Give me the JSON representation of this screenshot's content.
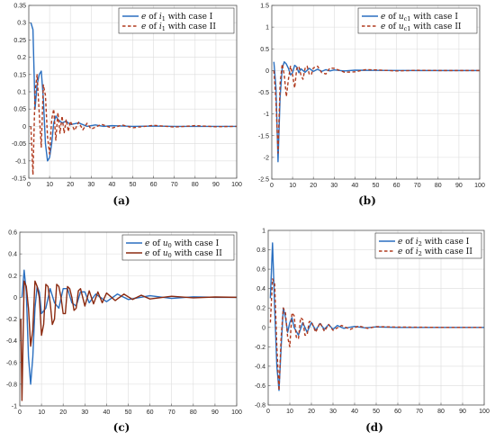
{
  "colors": {
    "case1": "#2a6fc0",
    "case2_dashed": "#b03a1e",
    "case2_solid_c": "#8b2a10",
    "grid": "#dcdcdc",
    "axis": "#555555"
  },
  "chart_data": [
    {
      "type": "line",
      "panel_label": "(a)",
      "xlim": [
        0,
        100
      ],
      "ylim": [
        -0.15,
        0.35
      ],
      "xticks": [
        0,
        10,
        20,
        30,
        40,
        50,
        60,
        70,
        80,
        90,
        100
      ],
      "yticks": [
        -0.15,
        -0.1,
        -0.05,
        0,
        0.05,
        0.1,
        0.15,
        0.2,
        0.25,
        0.3,
        0.35
      ],
      "ytick_labels": [
        "-0.15",
        "-0.1",
        "-0.05",
        "0",
        "0.05",
        "0.1",
        "0.15",
        "0.2",
        "0.25",
        "0.3",
        "0.35"
      ],
      "grid": true,
      "legend_position": "top-right",
      "series": [
        {
          "name_prefix": "e",
          "name_mid": " of ",
          "name_var": "i",
          "name_sub": "1",
          "name_suffix": " with case I",
          "style": "solid",
          "x": [
            1,
            2,
            3,
            4,
            5,
            6,
            7,
            8,
            9,
            10,
            11,
            12,
            13,
            14,
            16,
            18,
            20,
            24,
            28,
            32,
            36,
            40,
            50,
            60,
            70,
            80,
            90,
            100
          ],
          "y": [
            0.3,
            0.28,
            0.05,
            0.12,
            0.15,
            0.16,
            0.08,
            -0.05,
            -0.1,
            -0.09,
            -0.05,
            0.01,
            0.03,
            0.02,
            0.01,
            0.015,
            0.005,
            0.01,
            0.0,
            0.004,
            0.0,
            0.002,
            0.0,
            0.001,
            0.0,
            0.0,
            0.0,
            0.0
          ]
        },
        {
          "name_prefix": "e",
          "name_mid": " of ",
          "name_var": "i",
          "name_sub": "1",
          "name_suffix": " with case II",
          "style": "dashed",
          "x": [
            1,
            2,
            3,
            4,
            5,
            6,
            7,
            8,
            9,
            10,
            11,
            12,
            13,
            14,
            15,
            16,
            17,
            18,
            19,
            20,
            22,
            24,
            26,
            28,
            30,
            35,
            40,
            45,
            50,
            60,
            70,
            80,
            90,
            100
          ],
          "y": [
            0.0,
            -0.14,
            0.1,
            0.15,
            0.04,
            -0.06,
            0.12,
            0.09,
            -0.03,
            -0.08,
            0.02,
            0.05,
            -0.04,
            0.04,
            -0.02,
            0.03,
            -0.02,
            0.02,
            -0.015,
            0.015,
            -0.012,
            0.012,
            -0.01,
            0.009,
            -0.008,
            0.006,
            -0.005,
            0.004,
            -0.004,
            0.003,
            -0.002,
            0.002,
            -0.001,
            0.0
          ]
        }
      ]
    },
    {
      "type": "line",
      "panel_label": "(b)",
      "xlim": [
        0,
        100
      ],
      "ylim": [
        -2.5,
        1.5
      ],
      "xticks": [
        0,
        10,
        20,
        30,
        40,
        50,
        60,
        70,
        80,
        90,
        100
      ],
      "yticks": [
        -2.5,
        -2,
        -1.5,
        -1,
        -0.5,
        0,
        0.5,
        1,
        1.5
      ],
      "ytick_labels": [
        "-2.5",
        "-2",
        "-1.5",
        "-1",
        "-0.5",
        "0",
        "0.5",
        "1",
        "1.5"
      ],
      "grid": true,
      "legend_position": "top-right",
      "series": [
        {
          "name_prefix": "e",
          "name_mid": " of ",
          "name_var": "u",
          "name_sub": "c1",
          "name_suffix": " with case I",
          "style": "solid",
          "x": [
            1,
            2,
            3,
            4,
            5,
            6,
            7,
            8,
            9,
            10,
            11,
            12,
            13,
            14,
            16,
            18,
            20,
            22,
            24,
            26,
            28,
            30,
            35,
            40,
            50,
            60,
            70,
            80,
            90,
            100
          ],
          "y": [
            0.2,
            -0.4,
            -2.1,
            -0.6,
            0.05,
            0.2,
            0.15,
            0.05,
            -0.1,
            -0.05,
            0.12,
            0.08,
            -0.05,
            0.04,
            -0.04,
            0.05,
            -0.02,
            0.03,
            -0.02,
            0.02,
            -0.01,
            0.015,
            -0.01,
            0.008,
            0.003,
            0.002,
            0.0,
            0.0,
            0.0,
            0.0
          ]
        },
        {
          "name_prefix": "e",
          "name_mid": " of ",
          "name_var": "u",
          "name_sub": "c1",
          "name_suffix": " with case II",
          "style": "dashed",
          "x": [
            1,
            2,
            3,
            4,
            5,
            6,
            7,
            8,
            9,
            10,
            11,
            12,
            13,
            14,
            15,
            16,
            17,
            18,
            19,
            20,
            22,
            24,
            26,
            28,
            30,
            35,
            40,
            45,
            50,
            60,
            70,
            80,
            90,
            100
          ],
          "y": [
            0.0,
            -0.7,
            -1.9,
            -0.3,
            0.15,
            -0.1,
            -0.6,
            -0.2,
            0.1,
            -0.1,
            -0.4,
            0.05,
            0.1,
            -0.1,
            -0.2,
            0.05,
            0.1,
            -0.08,
            -0.1,
            0.06,
            0.1,
            -0.05,
            -0.08,
            0.06,
            0.05,
            -0.04,
            -0.03,
            0.02,
            0.015,
            -0.01,
            0.005,
            0.0,
            0.0,
            0.0
          ]
        }
      ]
    },
    {
      "type": "line",
      "panel_label": "(c)",
      "xlim": [
        0,
        100
      ],
      "ylim": [
        -1,
        0.6
      ],
      "xticks": [
        0,
        10,
        20,
        30,
        40,
        50,
        60,
        70,
        80,
        90,
        100
      ],
      "yticks": [
        -1,
        -0.8,
        -0.6,
        -0.4,
        -0.2,
        0,
        0.2,
        0.4,
        0.6
      ],
      "ytick_labels": [
        "-1",
        "-0.8",
        "-0.6",
        "-0.4",
        "-0.2",
        "0",
        "0.2",
        "0.4",
        "0.6"
      ],
      "grid": true,
      "legend_position": "top-right",
      "series": [
        {
          "name_prefix": "e",
          "name_mid": " of ",
          "name_var": "u",
          "name_sub": "0",
          "name_suffix": " with case I",
          "style": "solid",
          "x": [
            1,
            2,
            3,
            4,
            5,
            6,
            7,
            8,
            9,
            10,
            12,
            14,
            16,
            18,
            20,
            22,
            24,
            26,
            28,
            30,
            32,
            35,
            40,
            45,
            50,
            60,
            70,
            80,
            90,
            100
          ],
          "y": [
            0.0,
            0.25,
            0.05,
            -0.55,
            -0.8,
            -0.55,
            -0.1,
            0.1,
            0.05,
            -0.15,
            -0.1,
            0.08,
            -0.05,
            -0.1,
            0.08,
            0.08,
            -0.05,
            -0.08,
            0.05,
            0.05,
            -0.05,
            0.03,
            -0.04,
            0.03,
            -0.02,
            0.015,
            -0.01,
            0.005,
            0.0,
            0.0
          ]
        },
        {
          "name_prefix": "e",
          "name_mid": " of ",
          "name_var": "u",
          "name_sub": "0",
          "name_suffix": " with case II",
          "style": "solid",
          "x": [
            0.5,
            1,
            2,
            3,
            4,
            5,
            6,
            7,
            8,
            9,
            10,
            11,
            12,
            13,
            14,
            15,
            16,
            17,
            18,
            19,
            20,
            21,
            22,
            23,
            24,
            25,
            26,
            27,
            28,
            30,
            32,
            34,
            36,
            38,
            40,
            44,
            48,
            52,
            56,
            60,
            70,
            80,
            90,
            100
          ],
          "y": [
            -0.2,
            -0.95,
            0.15,
            0.1,
            -0.1,
            -0.45,
            -0.3,
            0.15,
            0.1,
            0.0,
            -0.35,
            -0.25,
            0.12,
            0.1,
            -0.05,
            -0.25,
            -0.2,
            0.12,
            0.1,
            0.0,
            -0.15,
            -0.15,
            0.1,
            0.08,
            0.0,
            -0.12,
            -0.1,
            0.06,
            0.08,
            -0.08,
            0.06,
            -0.06,
            0.05,
            -0.05,
            0.04,
            -0.03,
            0.03,
            -0.02,
            0.02,
            -0.015,
            0.01,
            -0.005,
            0.003,
            0.0
          ]
        }
      ]
    },
    {
      "type": "line",
      "panel_label": "(d)",
      "xlim": [
        0,
        100
      ],
      "ylim": [
        -0.8,
        1
      ],
      "xticks": [
        0,
        10,
        20,
        30,
        40,
        50,
        60,
        70,
        80,
        90,
        100
      ],
      "yticks": [
        -0.8,
        -0.6,
        -0.4,
        -0.2,
        0,
        0.2,
        0.4,
        0.6,
        0.8,
        1
      ],
      "ytick_labels": [
        "-0.8",
        "-0.6",
        "-0.4",
        "-0.2",
        "0",
        "0.2",
        "0.4",
        "0.6",
        "0.8",
        "1"
      ],
      "grid": true,
      "legend_position": "top-right",
      "series": [
        {
          "name_prefix": "e",
          "name_mid": " of ",
          "name_var": "i",
          "name_sub": "2",
          "name_suffix": " with case I",
          "style": "solid",
          "x": [
            1,
            2,
            3,
            4,
            5,
            6,
            7,
            8,
            9,
            10,
            11,
            12,
            14,
            16,
            18,
            20,
            22,
            24,
            26,
            28,
            30,
            32,
            35,
            40,
            45,
            50,
            60,
            70,
            80,
            90,
            100
          ],
          "y": [
            0.3,
            0.87,
            0.2,
            -0.4,
            -0.65,
            -0.2,
            0.2,
            0.1,
            -0.05,
            0.05,
            0.1,
            0.0,
            -0.08,
            0.05,
            -0.05,
            0.05,
            -0.03,
            0.04,
            -0.02,
            0.03,
            -0.02,
            0.02,
            -0.01,
            0.01,
            -0.005,
            0.005,
            0.0,
            0.0,
            0.0,
            0.0,
            0.0
          ]
        },
        {
          "name_prefix": "e",
          "name_mid": " of ",
          "name_var": "i",
          "name_sub": "2",
          "name_suffix": " with case II",
          "style": "dashed",
          "x": [
            1,
            2,
            3,
            4,
            5,
            6,
            7,
            8,
            9,
            10,
            11,
            12,
            13,
            14,
            15,
            16,
            17,
            18,
            19,
            20,
            22,
            24,
            26,
            28,
            30,
            34,
            38,
            42,
            46,
            50,
            60,
            70,
            80,
            90,
            100
          ],
          "y": [
            0.05,
            0.5,
            0.45,
            -0.2,
            -0.65,
            -0.1,
            0.2,
            0.15,
            -0.1,
            -0.2,
            0.15,
            0.12,
            -0.1,
            -0.12,
            0.1,
            0.08,
            -0.08,
            -0.08,
            0.06,
            0.06,
            -0.05,
            0.05,
            -0.04,
            0.03,
            -0.03,
            0.02,
            -0.02,
            0.015,
            -0.01,
            0.008,
            0.003,
            0.002,
            0.0,
            0.0,
            0.0
          ]
        }
      ]
    }
  ]
}
